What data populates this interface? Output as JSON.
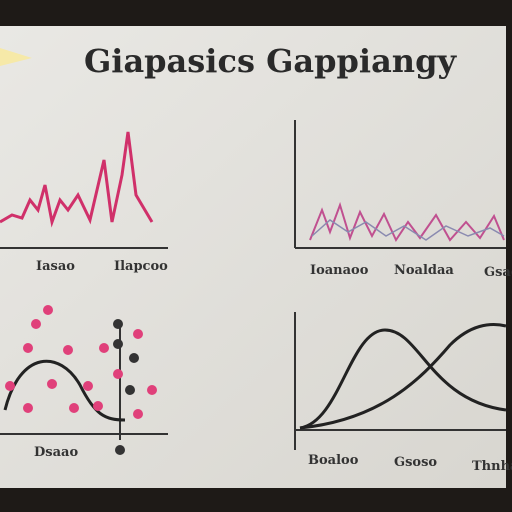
{
  "title": "Giapasics Gappiangy",
  "panels": [
    {
      "labels": [
        "Iasao",
        "Ilapcoo"
      ]
    },
    {
      "labels": [
        "Ioanaoo",
        "Noaldaa",
        "Gsao"
      ]
    },
    {
      "labels": [
        "Dsaao"
      ]
    },
    {
      "labels": [
        "Boaloo",
        "Gsoso",
        "Thnhabo"
      ]
    }
  ]
}
